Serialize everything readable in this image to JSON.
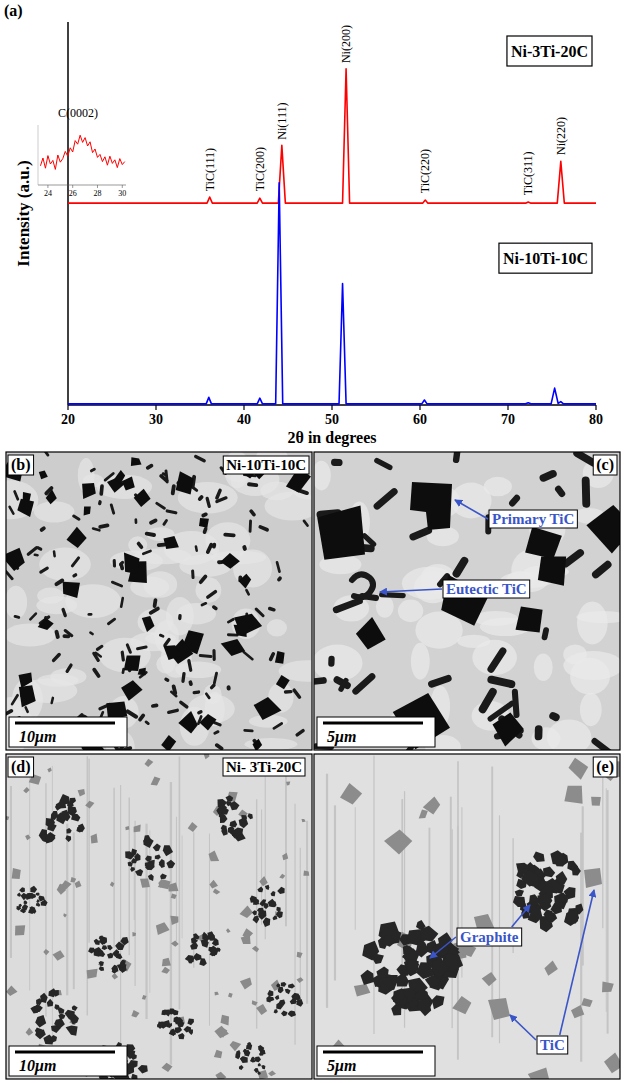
{
  "chart_data": [
    {
      "type": "line",
      "panel": "(a)",
      "x_label": "2θ in degrees",
      "y_label": "Intensity (a.u.)",
      "xlim": [
        20,
        80
      ],
      "xticks": [
        20,
        30,
        40,
        50,
        60,
        70,
        80
      ],
      "ylim": [
        0,
        100
      ],
      "tick_labels": "x",
      "legend": "right",
      "series": [
        {
          "name": "Ni-3Ti-20C",
          "color": "#ff0000",
          "x": [
            20,
            35.8,
            36.1,
            36.4,
            41.5,
            41.8,
            42.1,
            43.9,
            44.3,
            44.7,
            51.2,
            51.6,
            52.0,
            60.3,
            60.6,
            60.9,
            72.0,
            72.3,
            72.6,
            75.6,
            76.0,
            76.4,
            80
          ],
          "values": [
            52.7,
            52.7,
            54.3,
            52.7,
            52.7,
            54.0,
            52.7,
            52.7,
            67.8,
            52.7,
            52.7,
            87.8,
            52.7,
            52.7,
            53.5,
            52.7,
            52.7,
            53.0,
            52.7,
            52.7,
            63.6,
            52.7,
            52.7
          ]
        },
        {
          "name": "Ni-10Ti-10C",
          "color": "#0000ff",
          "x": [
            20,
            35.7,
            36.0,
            36.3,
            41.5,
            41.8,
            42.1,
            43.6,
            44.0,
            44.4,
            50.8,
            51.2,
            51.6,
            60.2,
            60.5,
            60.8,
            72.0,
            72.3,
            72.6,
            74.9,
            75.3,
            75.7,
            76.0,
            76.3,
            80
          ],
          "values": [
            0.3,
            0.3,
            2.0,
            0.3,
            0.3,
            1.8,
            0.3,
            0.3,
            58,
            0.3,
            0.3,
            31.7,
            0.3,
            0.3,
            1.3,
            0.3,
            0.3,
            0.6,
            0.3,
            0.3,
            4.4,
            0.4,
            0.9,
            0.3,
            0.3
          ]
        }
      ],
      "annotations": [
        {
          "text": "TiC(111)",
          "x": 36.1,
          "y": 55
        },
        {
          "text": "TiC(200)",
          "x": 41.8,
          "y": 55
        },
        {
          "text": "Ni(111)",
          "x": 44.3,
          "y": 68.5
        },
        {
          "text": "Ni(200)",
          "x": 51.6,
          "y": 88.5
        },
        {
          "text": "TiC(220)",
          "x": 60.6,
          "y": 54.5
        },
        {
          "text": "TiC(311)",
          "x": 72.3,
          "y": 54
        },
        {
          "text": "Ni(220)",
          "x": 76.0,
          "y": 64.5
        }
      ]
    },
    {
      "type": "line",
      "title": "C(0002)",
      "xlim": [
        23.2,
        30.3
      ],
      "xticks": [
        24,
        26,
        28,
        30
      ],
      "ylim": [
        0,
        10
      ],
      "tick_labels": "x",
      "series": [
        {
          "color": "#ff0000",
          "x": [
            23.4,
            23.6,
            23.8,
            24.0,
            24.2,
            24.4,
            24.6,
            24.8,
            25.0,
            25.2,
            25.4,
            25.6,
            25.8,
            26.0,
            26.2,
            26.4,
            26.6,
            26.8,
            27.0,
            27.2,
            27.4,
            27.6,
            27.8,
            28.0,
            28.2,
            28.4,
            28.6,
            28.8,
            29.0,
            29.2,
            29.4,
            29.6,
            29.8,
            30.0,
            30.2
          ],
          "values": [
            3.2,
            4.5,
            2.8,
            4.9,
            3.5,
            4.1,
            2.6,
            5.0,
            3.8,
            4.4,
            5.6,
            4.8,
            6.2,
            5.5,
            7.4,
            6.8,
            8.3,
            7.1,
            7.9,
            6.5,
            7.2,
            5.4,
            6.0,
            4.6,
            5.1,
            3.9,
            4.7,
            3.3,
            4.8,
            3.6,
            4.2,
            2.9,
            4.4,
            3.4,
            3.9
          ]
        }
      ]
    }
  ],
  "micrographs": [
    {
      "letter": "(b)",
      "label": "Ni-10Ti-10C",
      "scale_bar": "10μm"
    },
    {
      "letter": "(c)",
      "annotations": [
        "Primary TiC",
        "Eutectic TiC"
      ],
      "scale_bar": "5μm"
    },
    {
      "letter": "(d)",
      "label": "Ni- 3Ti-20C",
      "scale_bar": "10μm"
    },
    {
      "letter": "(e)",
      "annotations": [
        "Graphite",
        "TiC"
      ],
      "scale_bar": "5μm"
    }
  ]
}
